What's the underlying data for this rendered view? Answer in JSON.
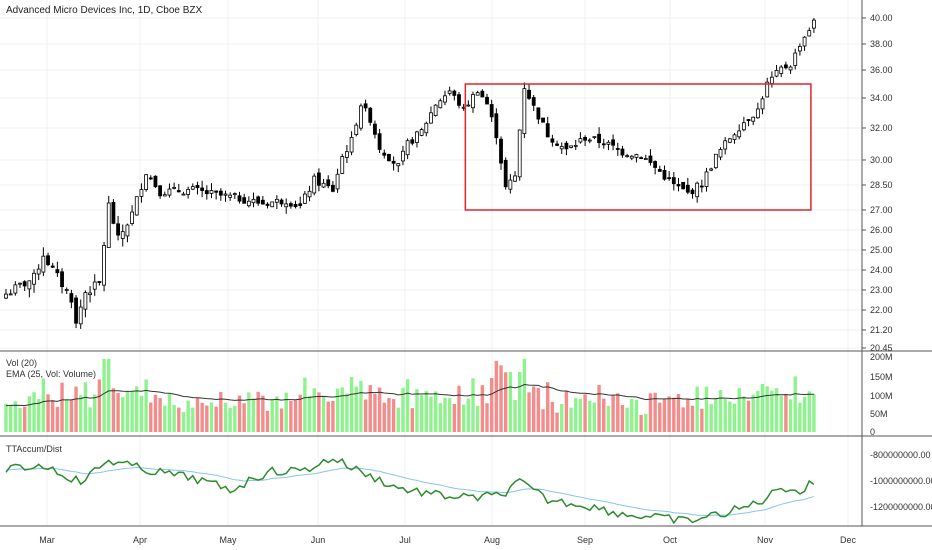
{
  "header": {
    "title": "Advanced Micro Devices Inc, 1D, Cboe BZX"
  },
  "colors": {
    "up": "#ffffff",
    "down": "#000000",
    "candle_outline": "#000000",
    "vol_up": "#8ef38e",
    "vol_down": "#f48c8c",
    "ema_line": "#333333",
    "accum_line": "#2e8b2e",
    "accum_signal": "#87c6e8",
    "annotation_box": "#e0262b",
    "grid": "#eef0f3",
    "divider": "#555555"
  },
  "chart_data": [
    {
      "type": "candlestick",
      "title": "Advanced Micro Devices Inc, 1D, Cboe BZX",
      "ylim": [
        20.45,
        40.0
      ],
      "y_ticks": [
        "40.00",
        "38.00",
        "36.00",
        "34.00",
        "32.00",
        "30.00",
        "28.50",
        "27.00",
        "26.00",
        "25.00",
        "24.00",
        "23.00",
        "22.00",
        "21.20",
        "20.45"
      ],
      "x_ticks": [
        "Mar",
        "Apr",
        "May",
        "Jun",
        "Jul",
        "Aug",
        "Sep",
        "Oct",
        "Nov",
        "Dec"
      ],
      "grid": true,
      "annotation": {
        "kind": "rectangle",
        "from_bar": 99,
        "to_bar": 173,
        "price_low": 27.0,
        "price_high": 35.0
      }
    },
    {
      "type": "bar",
      "series": [
        {
          "name": "Vol (20)"
        },
        {
          "name": "EMA (25, Vol: Volume)"
        }
      ],
      "y_ticks": [
        "200M",
        "150M",
        "100M",
        "50M",
        "0"
      ],
      "ylim": [
        0,
        200
      ]
    },
    {
      "type": "line",
      "series": [
        {
          "name": "TTAccum/Dist"
        }
      ],
      "y_ticks": [
        "-800000000.00",
        "-1000000000.00",
        "-1200000000.00"
      ]
    }
  ]
}
